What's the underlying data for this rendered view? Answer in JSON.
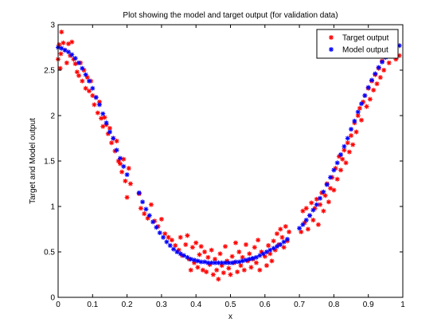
{
  "chart_data": {
    "type": "scatter",
    "title": "Plot showing the model and target output (for validation data)",
    "xlabel": "x",
    "ylabel": "Target and Model output",
    "xlim": [
      0,
      1
    ],
    "ylim": [
      0,
      3
    ],
    "xticks": [
      "0",
      "0.1",
      "0.2",
      "0.3",
      "0.4",
      "0.5",
      "0.6",
      "0.7",
      "0.8",
      "0.9",
      "1"
    ],
    "yticks": [
      "0",
      "0.5",
      "1",
      "1.5",
      "2",
      "2.5",
      "3"
    ],
    "grid": false,
    "legend_position": "top-right",
    "marker": "asterisk",
    "series": [
      {
        "name": "Target output",
        "color": "#ff0000",
        "points": [
          [
            0.0,
            2.62
          ],
          [
            0.003,
            2.78
          ],
          [
            0.006,
            2.52
          ],
          [
            0.008,
            2.68
          ],
          [
            0.01,
            2.92
          ],
          [
            0.015,
            2.8
          ],
          [
            0.02,
            2.72
          ],
          [
            0.025,
            2.58
          ],
          [
            0.03,
            2.79
          ],
          [
            0.035,
            2.66
          ],
          [
            0.04,
            2.81
          ],
          [
            0.045,
            2.62
          ],
          [
            0.05,
            2.57
          ],
          [
            0.055,
            2.48
          ],
          [
            0.06,
            2.44
          ],
          [
            0.065,
            2.58
          ],
          [
            0.07,
            2.38
          ],
          [
            0.075,
            2.5
          ],
          [
            0.08,
            2.3
          ],
          [
            0.085,
            2.42
          ],
          [
            0.09,
            2.27
          ],
          [
            0.095,
            2.38
          ],
          [
            0.1,
            2.22
          ],
          [
            0.105,
            2.12
          ],
          [
            0.11,
            2.2
          ],
          [
            0.115,
            2.03
          ],
          [
            0.12,
            2.15
          ],
          [
            0.125,
            1.97
          ],
          [
            0.13,
            1.88
          ],
          [
            0.135,
            1.98
          ],
          [
            0.14,
            1.9
          ],
          [
            0.145,
            1.8
          ],
          [
            0.15,
            1.86
          ],
          [
            0.155,
            1.7
          ],
          [
            0.16,
            1.75
          ],
          [
            0.165,
            1.61
          ],
          [
            0.17,
            1.72
          ],
          [
            0.175,
            1.5
          ],
          [
            0.18,
            1.47
          ],
          [
            0.185,
            1.38
          ],
          [
            0.19,
            1.52
          ],
          [
            0.195,
            1.28
          ],
          [
            0.2,
            1.1
          ],
          [
            0.205,
            1.42
          ],
          [
            0.21,
            1.25
          ],
          [
            0.235,
            1.14
          ],
          [
            0.24,
            0.98
          ],
          [
            0.25,
            0.92
          ],
          [
            0.26,
            0.87
          ],
          [
            0.27,
            1.02
          ],
          [
            0.28,
            0.84
          ],
          [
            0.29,
            0.78
          ],
          [
            0.3,
            0.86
          ],
          [
            0.31,
            0.7
          ],
          [
            0.32,
            0.66
          ],
          [
            0.33,
            0.63
          ],
          [
            0.34,
            0.57
          ],
          [
            0.35,
            0.52
          ],
          [
            0.355,
            0.66
          ],
          [
            0.36,
            0.46
          ],
          [
            0.37,
            0.58
          ],
          [
            0.375,
            0.68
          ],
          [
            0.38,
            0.42
          ],
          [
            0.385,
            0.3
          ],
          [
            0.39,
            0.55
          ],
          [
            0.395,
            0.38
          ],
          [
            0.4,
            0.6
          ],
          [
            0.405,
            0.33
          ],
          [
            0.41,
            0.47
          ],
          [
            0.415,
            0.56
          ],
          [
            0.42,
            0.3
          ],
          [
            0.425,
            0.5
          ],
          [
            0.43,
            0.28
          ],
          [
            0.435,
            0.44
          ],
          [
            0.44,
            0.36
          ],
          [
            0.445,
            0.52
          ],
          [
            0.45,
            0.25
          ],
          [
            0.455,
            0.42
          ],
          [
            0.46,
            0.3
          ],
          [
            0.465,
            0.2
          ],
          [
            0.47,
            0.48
          ],
          [
            0.475,
            0.35
          ],
          [
            0.48,
            0.27
          ],
          [
            0.485,
            0.56
          ],
          [
            0.49,
            0.4
          ],
          [
            0.495,
            0.32
          ],
          [
            0.5,
            0.25
          ],
          [
            0.505,
            0.45
          ],
          [
            0.51,
            0.38
          ],
          [
            0.515,
            0.6
          ],
          [
            0.52,
            0.28
          ],
          [
            0.525,
            0.5
          ],
          [
            0.53,
            0.35
          ],
          [
            0.535,
            0.44
          ],
          [
            0.54,
            0.3
          ],
          [
            0.545,
            0.58
          ],
          [
            0.55,
            0.4
          ],
          [
            0.555,
            0.48
          ],
          [
            0.56,
            0.33
          ],
          [
            0.565,
            0.42
          ],
          [
            0.57,
            0.55
          ],
          [
            0.575,
            0.38
          ],
          [
            0.58,
            0.63
          ],
          [
            0.585,
            0.3
          ],
          [
            0.59,
            0.5
          ],
          [
            0.6,
            0.45
          ],
          [
            0.605,
            0.35
          ],
          [
            0.61,
            0.57
          ],
          [
            0.615,
            0.48
          ],
          [
            0.62,
            0.4
          ],
          [
            0.625,
            0.62
          ],
          [
            0.63,
            0.52
          ],
          [
            0.635,
            0.7
          ],
          [
            0.64,
            0.58
          ],
          [
            0.645,
            0.75
          ],
          [
            0.65,
            0.66
          ],
          [
            0.655,
            0.55
          ],
          [
            0.66,
            0.78
          ],
          [
            0.665,
            0.62
          ],
          [
            0.67,
            0.72
          ],
          [
            0.705,
            0.72
          ],
          [
            0.71,
            0.95
          ],
          [
            0.715,
            0.82
          ],
          [
            0.72,
            0.98
          ],
          [
            0.725,
            0.75
          ],
          [
            0.73,
            0.9
          ],
          [
            0.735,
            1.04
          ],
          [
            0.74,
            0.85
          ],
          [
            0.745,
            0.98
          ],
          [
            0.75,
            1.08
          ],
          [
            0.755,
            0.8
          ],
          [
            0.76,
            1.02
          ],
          [
            0.765,
            1.15
          ],
          [
            0.77,
            0.95
          ],
          [
            0.775,
            1.12
          ],
          [
            0.78,
            1.25
          ],
          [
            0.785,
            1.05
          ],
          [
            0.79,
            1.2
          ],
          [
            0.795,
            1.32
          ],
          [
            0.8,
            1.18
          ],
          [
            0.805,
            1.42
          ],
          [
            0.81,
            1.3
          ],
          [
            0.815,
            1.55
          ],
          [
            0.82,
            1.4
          ],
          [
            0.825,
            1.52
          ],
          [
            0.83,
            1.62
          ],
          [
            0.835,
            1.48
          ],
          [
            0.84,
            1.7
          ],
          [
            0.845,
            1.6
          ],
          [
            0.85,
            1.78
          ],
          [
            0.855,
            1.68
          ],
          [
            0.86,
            1.92
          ],
          [
            0.865,
            1.82
          ],
          [
            0.87,
            2.0
          ],
          [
            0.875,
            2.08
          ],
          [
            0.88,
            1.95
          ],
          [
            0.885,
            2.15
          ],
          [
            0.89,
            2.22
          ],
          [
            0.895,
            2.1
          ],
          [
            0.9,
            2.3
          ],
          [
            0.905,
            2.18
          ],
          [
            0.91,
            2.38
          ],
          [
            0.915,
            2.28
          ],
          [
            0.92,
            2.45
          ],
          [
            0.925,
            2.35
          ],
          [
            0.93,
            2.52
          ],
          [
            0.935,
            2.42
          ],
          [
            0.94,
            2.6
          ],
          [
            0.945,
            2.5
          ],
          [
            0.95,
            2.66
          ],
          [
            0.96,
            2.58
          ],
          [
            0.97,
            2.72
          ],
          [
            0.98,
            2.62
          ],
          [
            0.99,
            2.66
          ]
        ]
      },
      {
        "name": "Model output",
        "color": "#0000ff",
        "points": [
          [
            0.0,
            2.75
          ],
          [
            0.01,
            2.74
          ],
          [
            0.02,
            2.72
          ],
          [
            0.03,
            2.7
          ],
          [
            0.04,
            2.67
          ],
          [
            0.05,
            2.63
          ],
          [
            0.06,
            2.58
          ],
          [
            0.07,
            2.52
          ],
          [
            0.08,
            2.45
          ],
          [
            0.09,
            2.38
          ],
          [
            0.1,
            2.3
          ],
          [
            0.11,
            2.2
          ],
          [
            0.12,
            2.12
          ],
          [
            0.13,
            2.02
          ],
          [
            0.14,
            1.92
          ],
          [
            0.15,
            1.82
          ],
          [
            0.16,
            1.75
          ],
          [
            0.17,
            1.62
          ],
          [
            0.18,
            1.53
          ],
          [
            0.19,
            1.44
          ],
          [
            0.2,
            1.35
          ],
          [
            0.235,
            1.15
          ],
          [
            0.245,
            1.05
          ],
          [
            0.255,
            0.97
          ],
          [
            0.265,
            0.9
          ],
          [
            0.275,
            0.83
          ],
          [
            0.285,
            0.77
          ],
          [
            0.295,
            0.71
          ],
          [
            0.305,
            0.66
          ],
          [
            0.315,
            0.61
          ],
          [
            0.325,
            0.57
          ],
          [
            0.335,
            0.53
          ],
          [
            0.345,
            0.5
          ],
          [
            0.355,
            0.48
          ],
          [
            0.365,
            0.46
          ],
          [
            0.375,
            0.44
          ],
          [
            0.385,
            0.42
          ],
          [
            0.395,
            0.41
          ],
          [
            0.405,
            0.4
          ],
          [
            0.415,
            0.39
          ],
          [
            0.425,
            0.39
          ],
          [
            0.435,
            0.38
          ],
          [
            0.445,
            0.38
          ],
          [
            0.455,
            0.38
          ],
          [
            0.465,
            0.38
          ],
          [
            0.475,
            0.38
          ],
          [
            0.485,
            0.38
          ],
          [
            0.495,
            0.38
          ],
          [
            0.505,
            0.38
          ],
          [
            0.515,
            0.39
          ],
          [
            0.525,
            0.39
          ],
          [
            0.535,
            0.4
          ],
          [
            0.545,
            0.41
          ],
          [
            0.555,
            0.42
          ],
          [
            0.565,
            0.43
          ],
          [
            0.575,
            0.44
          ],
          [
            0.585,
            0.46
          ],
          [
            0.595,
            0.48
          ],
          [
            0.605,
            0.5
          ],
          [
            0.615,
            0.52
          ],
          [
            0.625,
            0.54
          ],
          [
            0.635,
            0.56
          ],
          [
            0.645,
            0.58
          ],
          [
            0.655,
            0.61
          ],
          [
            0.665,
            0.64
          ],
          [
            0.7,
            0.76
          ],
          [
            0.71,
            0.8
          ],
          [
            0.72,
            0.85
          ],
          [
            0.73,
            0.9
          ],
          [
            0.74,
            0.96
          ],
          [
            0.75,
            1.02
          ],
          [
            0.76,
            1.09
          ],
          [
            0.77,
            1.16
          ],
          [
            0.78,
            1.24
          ],
          [
            0.79,
            1.32
          ],
          [
            0.8,
            1.4
          ],
          [
            0.81,
            1.48
          ],
          [
            0.82,
            1.57
          ],
          [
            0.83,
            1.66
          ],
          [
            0.84,
            1.75
          ],
          [
            0.85,
            1.85
          ],
          [
            0.86,
            1.94
          ],
          [
            0.87,
            2.04
          ],
          [
            0.88,
            2.13
          ],
          [
            0.89,
            2.22
          ],
          [
            0.9,
            2.31
          ],
          [
            0.91,
            2.39
          ],
          [
            0.92,
            2.46
          ],
          [
            0.93,
            2.53
          ],
          [
            0.94,
            2.59
          ],
          [
            0.95,
            2.64
          ],
          [
            0.96,
            2.68
          ],
          [
            0.97,
            2.72
          ],
          [
            0.98,
            2.75
          ],
          [
            0.99,
            2.77
          ]
        ]
      }
    ]
  }
}
